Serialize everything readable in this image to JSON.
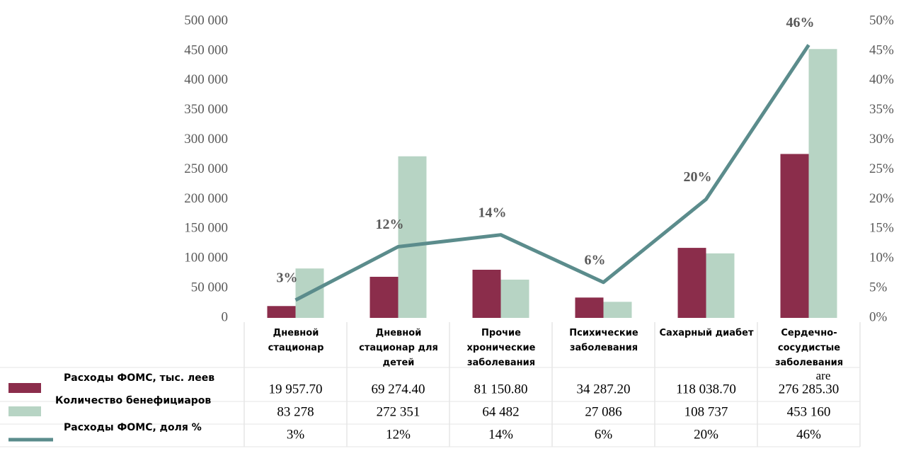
{
  "chart_data": {
    "type": "bar_line_table",
    "categories": [
      "Дневной стационар",
      "Дневной стационар для детей",
      "Прочие хронические заболевания",
      "Психические заболевания",
      "Сахарный диабет",
      "Сердечно-сосудистые заболевания"
    ],
    "series": [
      {
        "name": "Расходы ФОМС, тыс. леев",
        "color": "#8b2d4b",
        "values": [
          19957.7,
          69274.4,
          81150.8,
          34287.2,
          118038.7,
          276285.3
        ],
        "value_labels": [
          "19 957.70",
          "69 274.40",
          "81 150.80",
          "34 287.20",
          "118 038.70",
          "276 285.30"
        ]
      },
      {
        "name": "Количество бенефициаров",
        "color": "#b7d4c4",
        "values": [
          83278,
          272351,
          64482,
          27086,
          108737,
          453160
        ],
        "value_labels": [
          "83 278",
          "272 351",
          "64 482",
          "27 086",
          "108 737",
          "453 160"
        ]
      },
      {
        "name": "Расходы  ФОМС, доля %",
        "color": "#5b8c8c",
        "axis": "y2",
        "values": [
          3,
          12,
          14,
          6,
          20,
          46
        ],
        "value_labels": [
          "3%",
          "12%",
          "14%",
          "6%",
          "20%",
          "46%"
        ]
      }
    ],
    "ylim": [
      0,
      500000
    ],
    "yticks": [
      {
        "value": 0,
        "label": "0"
      },
      {
        "value": 50000,
        "label": "50 000"
      },
      {
        "value": 100000,
        "label": "100 000"
      },
      {
        "value": 150000,
        "label": "150 000"
      },
      {
        "value": 200000,
        "label": "200 000"
      },
      {
        "value": 250000,
        "label": "250 000"
      },
      {
        "value": 300000,
        "label": "300 000"
      },
      {
        "value": 350000,
        "label": "350 000"
      },
      {
        "value": 400000,
        "label": "400 000"
      },
      {
        "value": 450000,
        "label": "450 000"
      },
      {
        "value": 500000,
        "label": "500 000"
      }
    ],
    "y2lim": [
      0,
      50
    ],
    "y2ticks": [
      {
        "value": 0,
        "label": "0%"
      },
      {
        "value": 5,
        "label": "5%"
      },
      {
        "value": 10,
        "label": "10%"
      },
      {
        "value": 15,
        "label": "15%"
      },
      {
        "value": 20,
        "label": "20%"
      },
      {
        "value": 25,
        "label": "25%"
      },
      {
        "value": 30,
        "label": "30%"
      },
      {
        "value": 35,
        "label": "35%"
      },
      {
        "value": 40,
        "label": "40%"
      },
      {
        "value": 45,
        "label": "45%"
      },
      {
        "value": 50,
        "label": "50%"
      }
    ],
    "annotation": "are"
  }
}
